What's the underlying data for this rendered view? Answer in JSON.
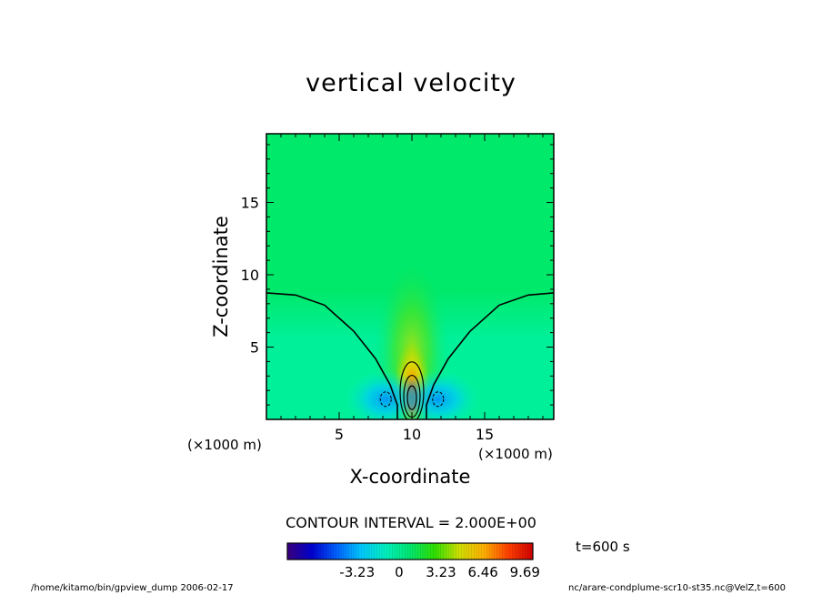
{
  "chart_data": {
    "type": "heatmap",
    "title": "vertical velocity",
    "xlabel": "X-coordinate",
    "ylabel": "Z-coordinate",
    "x_unit": "(×1000 m)",
    "y_unit": "(×1000 m)",
    "xlim": [
      0,
      19.75
    ],
    "ylim": [
      0,
      19.75
    ],
    "x_ticks": [
      5,
      10,
      15
    ],
    "y_ticks": [
      5,
      10,
      15
    ],
    "x_tick_labels": [
      "5",
      "10",
      "15"
    ],
    "y_tick_labels": [
      "5",
      "10",
      "15"
    ],
    "colorbar": {
      "range": [
        -8.6,
        10.3
      ],
      "tick_values": [
        -3.23,
        0,
        3.23,
        6.46,
        9.69
      ],
      "tick_labels": [
        "-3.23",
        "0",
        "3.23",
        "6.46",
        "9.69"
      ]
    },
    "contour_interval_text": "CONTOUR INTERVAL = 2.000E+00",
    "contour_interval": 2.0,
    "time_label": "t=600 s",
    "features": {
      "updraft_center": {
        "x": 10,
        "z": 1.5,
        "peak": 9.69
      },
      "downdraft_centers": [
        {
          "x": 8.2,
          "z": 1.4,
          "min": -3.23
        },
        {
          "x": 11.8,
          "z": 1.4,
          "min": -3.23
        }
      ],
      "zero_contour": {
        "left": [
          [
            0,
            8.75
          ],
          [
            2,
            8.6
          ],
          [
            4,
            7.9
          ],
          [
            6,
            6.1
          ],
          [
            7.5,
            4.2
          ],
          [
            8.5,
            2.4
          ],
          [
            9,
            1.0
          ],
          [
            9,
            0
          ]
        ],
        "right": [
          [
            11,
            0
          ],
          [
            11,
            1.0
          ],
          [
            11.5,
            2.4
          ],
          [
            12.5,
            4.2
          ],
          [
            14,
            6.1
          ],
          [
            16,
            7.9
          ],
          [
            18,
            8.6
          ],
          [
            19.75,
            8.75
          ]
        ]
      }
    }
  },
  "footer": {
    "left": "/home/kitamo/bin/gpview_dump  2006-02-17",
    "right": "nc/arare-condplume-scr10-st35.nc@VelZ,t=600"
  },
  "colors": {
    "background_field": "#00f09a",
    "upper_field": "#00e96a",
    "colormap": [
      "#3b0080",
      "#0000d0",
      "#0060ff",
      "#00c8ff",
      "#00f0c0",
      "#00e870",
      "#30e000",
      "#d0e000",
      "#ffb000",
      "#ff4000",
      "#d00000"
    ]
  }
}
